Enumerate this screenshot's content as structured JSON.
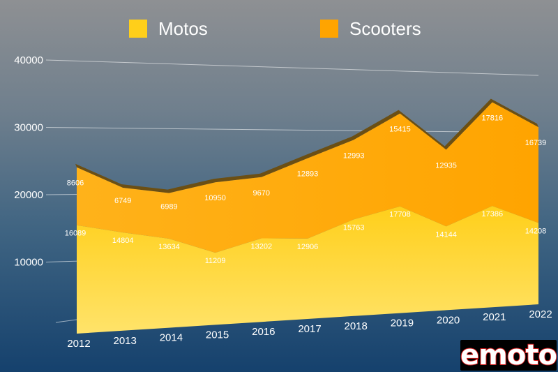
{
  "colors": {
    "motos": "#ffcf1a",
    "scooters": "#ffa400",
    "ridge": "#6b4f14",
    "text": "#ffffff"
  },
  "legend": {
    "motos": "Motos",
    "scooters": "Scooters"
  },
  "logo": {
    "text": "emoto"
  },
  "chart_data": {
    "type": "area",
    "stacked": true,
    "title": "",
    "xlabel": "",
    "ylabel": "",
    "ylim": [
      0,
      40000
    ],
    "yticks": [
      10000,
      20000,
      30000,
      40000
    ],
    "grid": true,
    "legend_position": "top",
    "categories": [
      "2012",
      "2013",
      "2014",
      "2015",
      "2016",
      "2017",
      "2018",
      "2019",
      "2020",
      "2021",
      "2022"
    ],
    "series": [
      {
        "name": "Motos",
        "values": [
          16089,
          14804,
          13634,
          11209,
          13202,
          12906,
          15763,
          17708,
          14144,
          17386,
          14208
        ]
      },
      {
        "name": "Scooters",
        "values": [
          8606,
          6749,
          6989,
          10950,
          9670,
          12893,
          12993,
          15415,
          12935,
          17816,
          16739
        ]
      }
    ]
  }
}
